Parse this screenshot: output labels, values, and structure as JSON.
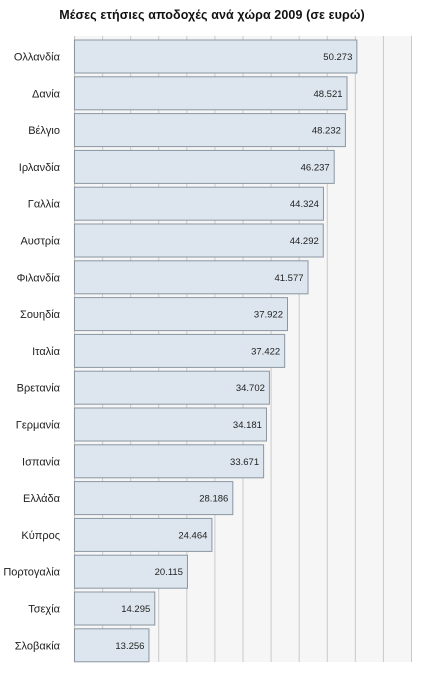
{
  "chart_data": {
    "type": "bar",
    "orientation": "horizontal",
    "title": "Μέσες ετήσιες αποδοχές ανά χώρα 2009 (σε ευρώ)",
    "categories": [
      "Ολλανδία",
      "Δανία",
      "Βέλγιο",
      "Ιρλανδία",
      "Γαλλία",
      "Αυστρία",
      "Φιλανδία",
      "Σουηδία",
      "Ιταλία",
      "Βρετανία",
      "Γερμανία",
      "Ισπανία",
      "Ελλάδα",
      "Κύπρος",
      "Πορτογαλία",
      "Τσεχία",
      "Σλοβακία"
    ],
    "values": [
      50273,
      48521,
      48232,
      46237,
      44324,
      44292,
      41577,
      37922,
      37422,
      34702,
      34181,
      33671,
      28186,
      24464,
      20115,
      14295,
      13256
    ],
    "value_labels": [
      "50.273",
      "48.521",
      "48.232",
      "46.237",
      "44.324",
      "44.292",
      "41.577",
      "37.922",
      "37.422",
      "34.702",
      "34.181",
      "33.671",
      "28.186",
      "24.464",
      "20.115",
      "14.295",
      "13.256"
    ],
    "xlim": [
      0,
      60000
    ],
    "grid": true,
    "legend": "none",
    "colors": {
      "bar_fill": "#dde6ee",
      "bar_stroke": "#8a96a2",
      "plot_bg": "#f6f6f6",
      "grid": "#c9c9c9"
    }
  }
}
